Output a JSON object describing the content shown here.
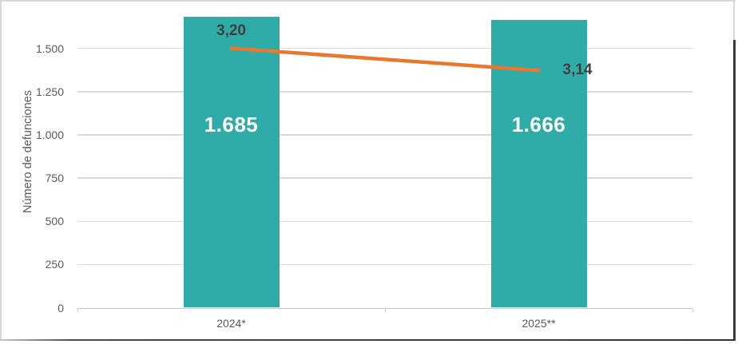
{
  "chart_data": {
    "type": "bar",
    "subtype": "bar-with-secondary-line",
    "categories": [
      "2024*",
      "2025**"
    ],
    "series": [
      {
        "id": "defunciones-bars",
        "type": "bar",
        "values": [
          1685,
          1666
        ],
        "data_labels": [
          "1.685",
          "1.666"
        ],
        "color": "#2FACA8",
        "label_color": "#FFFFFF"
      },
      {
        "id": "tasa-line",
        "type": "line",
        "axis": "secondary",
        "values": [
          3.2,
          3.14
        ],
        "data_labels": [
          "3,20",
          "3,14"
        ],
        "label_placement": [
          "above",
          "right"
        ],
        "color": "#E8782D",
        "label_color": "#3F3F3F"
      }
    ],
    "title": "",
    "xlabel": "",
    "ylabel": "Número de defunciones",
    "yticks": [
      {
        "value": 0,
        "label": "0"
      },
      {
        "value": 250,
        "label": "250"
      },
      {
        "value": 500,
        "label": "500"
      },
      {
        "value": 750,
        "label": "750"
      },
      {
        "value": 1000,
        "label": "1.000"
      },
      {
        "value": 1250,
        "label": "1.250"
      },
      {
        "value": 1500,
        "label": "1.500"
      }
    ],
    "ylim": [
      0,
      1716
    ],
    "y2lim": [
      2.5,
      3.3
    ],
    "grid": true,
    "legend": "none",
    "colors": {
      "grid": "#DADADA",
      "axis": "#C9C9C9",
      "tick_text": "#595959"
    }
  }
}
